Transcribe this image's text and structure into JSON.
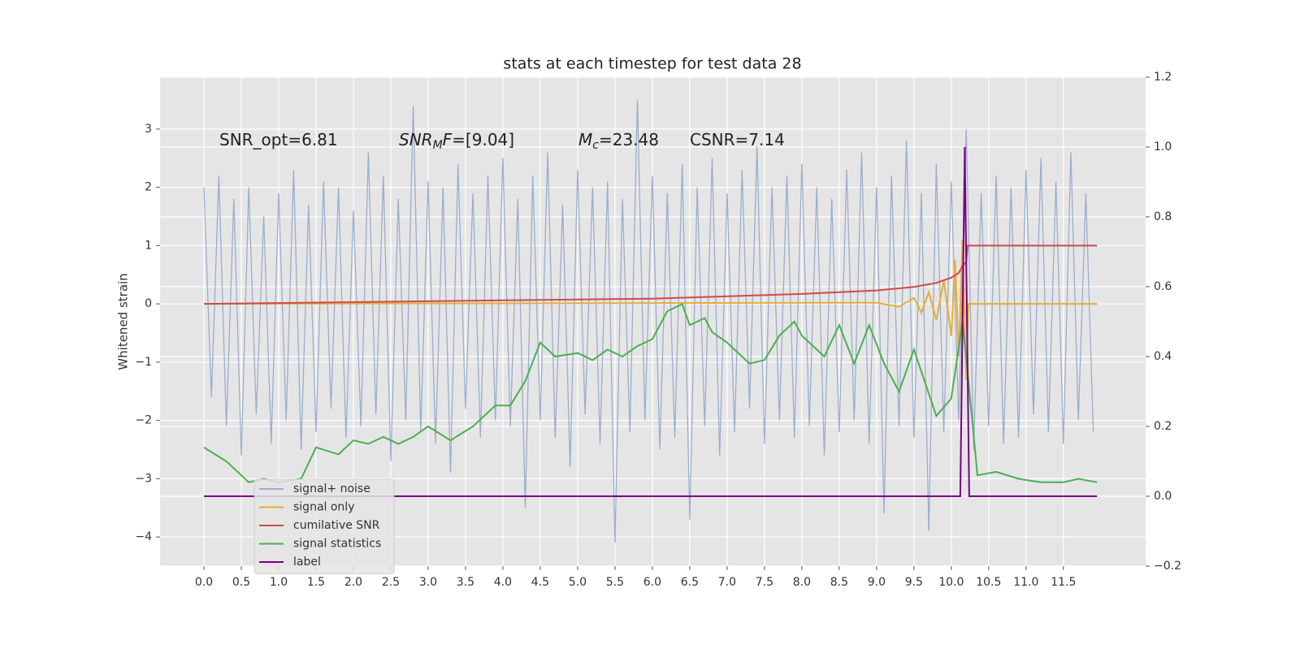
{
  "chart_data": {
    "type": "line",
    "title": "stats at each timestep for test data 28",
    "ylabel": "Whitened strain",
    "grid": true,
    "legend": "lower left",
    "annotations": [
      [
        {
          "text": "SNR_opt=6.81"
        }
      ],
      [
        {
          "text": "SNR",
          "italic": true
        },
        {
          "text": "M",
          "italic": true,
          "sub": true
        },
        {
          "text": "F",
          "italic": true
        },
        {
          "text": "=[9.04]"
        }
      ],
      [
        {
          "text": "M",
          "italic": true
        },
        {
          "text": "c",
          "italic": true,
          "sub": true
        },
        {
          "text": "=23.48"
        }
      ],
      [
        {
          "text": "CSNR=7.14"
        }
      ]
    ],
    "xlim": [
      -0.587,
      12.6
    ],
    "xticks": [
      {
        "value": 0,
        "label": "0.0"
      },
      0.5,
      {
        "value": 1,
        "label": "1.0"
      },
      1.5,
      {
        "value": 2,
        "label": "2.0"
      },
      2.5,
      {
        "value": 3,
        "label": "3.0"
      },
      3.5,
      {
        "value": 4,
        "label": "4.0"
      },
      4.5,
      {
        "value": 5,
        "label": "5.0"
      },
      5.5,
      {
        "value": 6,
        "label": "6.0"
      },
      6.5,
      {
        "value": 7,
        "label": "7.0"
      },
      7.5,
      {
        "value": 8,
        "label": "8.0"
      },
      8.5,
      {
        "value": 9,
        "label": "9.0"
      },
      9.5,
      {
        "value": 10,
        "label": "10.0"
      },
      10.5,
      {
        "value": 11,
        "label": "11.0"
      },
      11.5
    ],
    "ylim": [
      -4.5,
      3.89
    ],
    "yticks": [
      {
        "value": -4,
        "label": "−4"
      },
      {
        "value": -3,
        "label": "−3"
      },
      {
        "value": -2,
        "label": "−2"
      },
      {
        "value": -1,
        "label": "−1"
      },
      0,
      1,
      2,
      3
    ],
    "y2lim": [
      -0.2,
      1.2
    ],
    "y2ticks": [
      {
        "value": -0.2,
        "label": "−0.2"
      },
      {
        "value": 0,
        "label": "0.0"
      },
      0.2,
      0.4,
      0.6,
      0.8,
      {
        "value": 1,
        "label": "1.0"
      },
      1.2
    ],
    "series": [
      {
        "name": "signal+ noise",
        "color": "#97aacd",
        "x": [
          0,
          0.1,
          0.2,
          0.3,
          0.4,
          0.5,
          0.6,
          0.7,
          0.8,
          0.9,
          1,
          1.1,
          1.2,
          1.3,
          1.4,
          1.5,
          1.6,
          1.7,
          1.8,
          1.9,
          2,
          2.1,
          2.2,
          2.3,
          2.4,
          2.5,
          2.6,
          2.7,
          2.8,
          2.9,
          3,
          3.1,
          3.2,
          3.3,
          3.4,
          3.5,
          3.6,
          3.7,
          3.8,
          3.9,
          4,
          4.1,
          4.2,
          4.3,
          4.4,
          4.5,
          4.6,
          4.7,
          4.8,
          4.9,
          5,
          5.1,
          5.2,
          5.3,
          5.4,
          5.5,
          5.6,
          5.7,
          5.8,
          5.9,
          6,
          6.1,
          6.2,
          6.3,
          6.4,
          6.5,
          6.6,
          6.7,
          6.8,
          6.9,
          7,
          7.1,
          7.2,
          7.3,
          7.4,
          7.5,
          7.6,
          7.7,
          7.8,
          7.9,
          8,
          8.1,
          8.2,
          8.3,
          8.4,
          8.5,
          8.6,
          8.7,
          8.8,
          8.9,
          9,
          9.1,
          9.2,
          9.3,
          9.4,
          9.5,
          9.6,
          9.7,
          9.8,
          9.9,
          10,
          10.1,
          10.2,
          10.3,
          10.4,
          10.5,
          10.6,
          10.7,
          10.8,
          10.9,
          11,
          11.1,
          11.2,
          11.3,
          11.4,
          11.5,
          11.6,
          11.7,
          11.8,
          11.9
        ],
        "values": [
          2.0,
          -1.6,
          2.2,
          -2.1,
          1.8,
          -2.6,
          2.0,
          -1.9,
          1.5,
          -2.4,
          1.9,
          -2.0,
          2.3,
          -2.5,
          1.7,
          -2.2,
          2.1,
          -1.8,
          2.0,
          -2.3,
          1.6,
          -2.1,
          2.6,
          -1.9,
          2.2,
          -2.7,
          1.8,
          -2.0,
          3.4,
          -2.2,
          2.1,
          -2.4,
          2.0,
          -2.9,
          2.4,
          -1.8,
          1.9,
          -2.3,
          2.2,
          -2.0,
          2.5,
          -2.1,
          1.8,
          -3.5,
          2.2,
          -2.0,
          2.6,
          -2.3,
          1.7,
          -2.8,
          2.3,
          -1.9,
          2.0,
          -2.4,
          2.1,
          -4.1,
          1.8,
          -2.2,
          3.5,
          -2.0,
          2.2,
          -2.5,
          1.9,
          -2.3,
          2.4,
          -3.7,
          2.0,
          -2.1,
          2.5,
          -2.6,
          1.9,
          -2.2,
          2.3,
          -1.8,
          2.7,
          -2.4,
          2.0,
          -2.0,
          2.2,
          -2.3,
          2.4,
          -2.1,
          2.0,
          -2.6,
          1.8,
          -2.2,
          2.3,
          -2.0,
          2.6,
          -2.4,
          2.0,
          -3.6,
          2.2,
          -2.1,
          2.8,
          -2.3,
          1.9,
          -3.9,
          2.4,
          -2.2,
          2.1,
          -2.0,
          3.0,
          -2.5,
          1.9,
          -2.1,
          2.2,
          -2.4,
          2.0,
          -2.3,
          2.3,
          -1.9,
          2.5,
          -2.2,
          2.1,
          -2.4,
          2.6,
          -2.0,
          1.9,
          -2.2
        ]
      },
      {
        "name": "signal only",
        "color": "#e5ae38",
        "x": [
          0,
          9.0,
          9.3,
          9.5,
          9.6,
          9.7,
          9.8,
          9.9,
          10.0,
          10.05,
          10.1,
          10.15,
          10.2,
          10.23,
          11.95
        ],
        "values": [
          0,
          0.02,
          -0.05,
          0.1,
          -0.15,
          0.2,
          -0.28,
          0.4,
          -0.55,
          0.75,
          -0.9,
          1.1,
          -1.3,
          0,
          0
        ]
      },
      {
        "name": "cumilative SNR",
        "color": "#d04a4a",
        "x": [
          0,
          2,
          4,
          6,
          8,
          9,
          9.5,
          9.8,
          10.0,
          10.1,
          10.15,
          10.2,
          10.22,
          11.95
        ],
        "values": [
          0,
          0.03,
          0.06,
          0.09,
          0.17,
          0.23,
          0.29,
          0.36,
          0.45,
          0.53,
          0.65,
          0.72,
          1.0,
          1.0
        ]
      },
      {
        "name": "signal statistics",
        "color": "#4caf50",
        "axis": "y2",
        "x": [
          0,
          0.3,
          0.5,
          0.6,
          0.8,
          1.0,
          1.3,
          1.5,
          1.8,
          2.0,
          2.2,
          2.4,
          2.6,
          2.8,
          3.0,
          3.3,
          3.6,
          3.9,
          4.1,
          4.3,
          4.5,
          4.7,
          5.0,
          5.2,
          5.4,
          5.6,
          5.8,
          6.0,
          6.2,
          6.4,
          6.5,
          6.7,
          6.8,
          7.0,
          7.3,
          7.5,
          7.7,
          7.9,
          8.0,
          8.3,
          8.5,
          8.7,
          8.9,
          9.1,
          9.3,
          9.5,
          9.8,
          10.0,
          10.15,
          10.22,
          10.35,
          10.6,
          10.9,
          11.2,
          11.5,
          11.7,
          11.95
        ],
        "values": [
          0.14,
          0.1,
          0.06,
          0.04,
          0.05,
          0.04,
          0.05,
          0.14,
          0.12,
          0.16,
          0.15,
          0.17,
          0.15,
          0.17,
          0.2,
          0.16,
          0.2,
          0.26,
          0.26,
          0.33,
          0.44,
          0.4,
          0.41,
          0.39,
          0.42,
          0.4,
          0.43,
          0.45,
          0.53,
          0.55,
          0.49,
          0.51,
          0.47,
          0.44,
          0.38,
          0.39,
          0.46,
          0.5,
          0.46,
          0.4,
          0.49,
          0.38,
          0.49,
          0.38,
          0.3,
          0.42,
          0.23,
          0.28,
          0.5,
          0.35,
          0.06,
          0.07,
          0.05,
          0.04,
          0.04,
          0.05,
          0.04
        ]
      },
      {
        "name": "label",
        "color": "#7b0080",
        "axis": "y2",
        "x": [
          0,
          10.12,
          10.18,
          10.24,
          11.95
        ],
        "values": [
          0,
          0,
          1.0,
          0,
          0
        ]
      }
    ]
  }
}
